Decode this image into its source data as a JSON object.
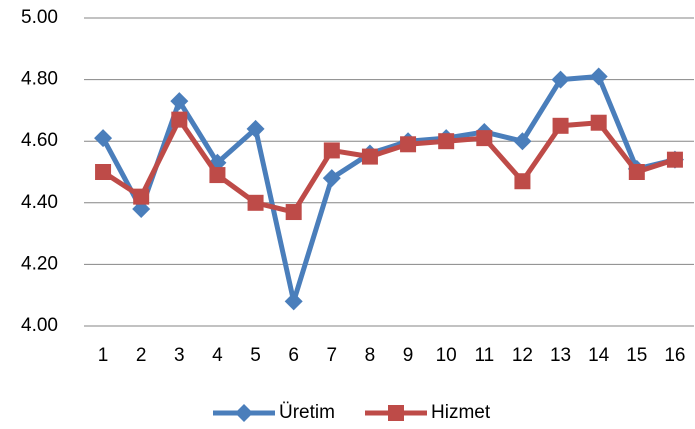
{
  "chart_data": {
    "type": "line",
    "categories": [
      "1",
      "2",
      "3",
      "4",
      "5",
      "6",
      "7",
      "8",
      "9",
      "10",
      "11",
      "12",
      "13",
      "14",
      "15",
      "16"
    ],
    "series": [
      {
        "name": "Üretim",
        "color": "#4a7ebb",
        "marker": "diamond",
        "values": [
          4.61,
          4.38,
          4.73,
          4.53,
          4.64,
          4.08,
          4.48,
          4.56,
          4.6,
          4.61,
          4.63,
          4.6,
          4.8,
          4.81,
          4.51,
          4.54
        ]
      },
      {
        "name": "Hizmet",
        "color": "#be4b48",
        "marker": "square",
        "values": [
          4.5,
          4.42,
          4.67,
          4.49,
          4.4,
          4.37,
          4.57,
          4.55,
          4.59,
          4.6,
          4.61,
          4.47,
          4.65,
          4.66,
          4.5,
          4.54
        ]
      }
    ],
    "ylim": [
      4.0,
      5.0
    ],
    "yticks": [
      {
        "value": 4.0,
        "label": "4.00"
      },
      {
        "value": 4.2,
        "label": "4.20"
      },
      {
        "value": 4.4,
        "label": "4.40"
      },
      {
        "value": 4.6,
        "label": "4.60"
      },
      {
        "value": 4.8,
        "label": "4.80"
      },
      {
        "value": 5.0,
        "label": "5.00"
      }
    ],
    "grid": true,
    "legend": "bottom"
  }
}
